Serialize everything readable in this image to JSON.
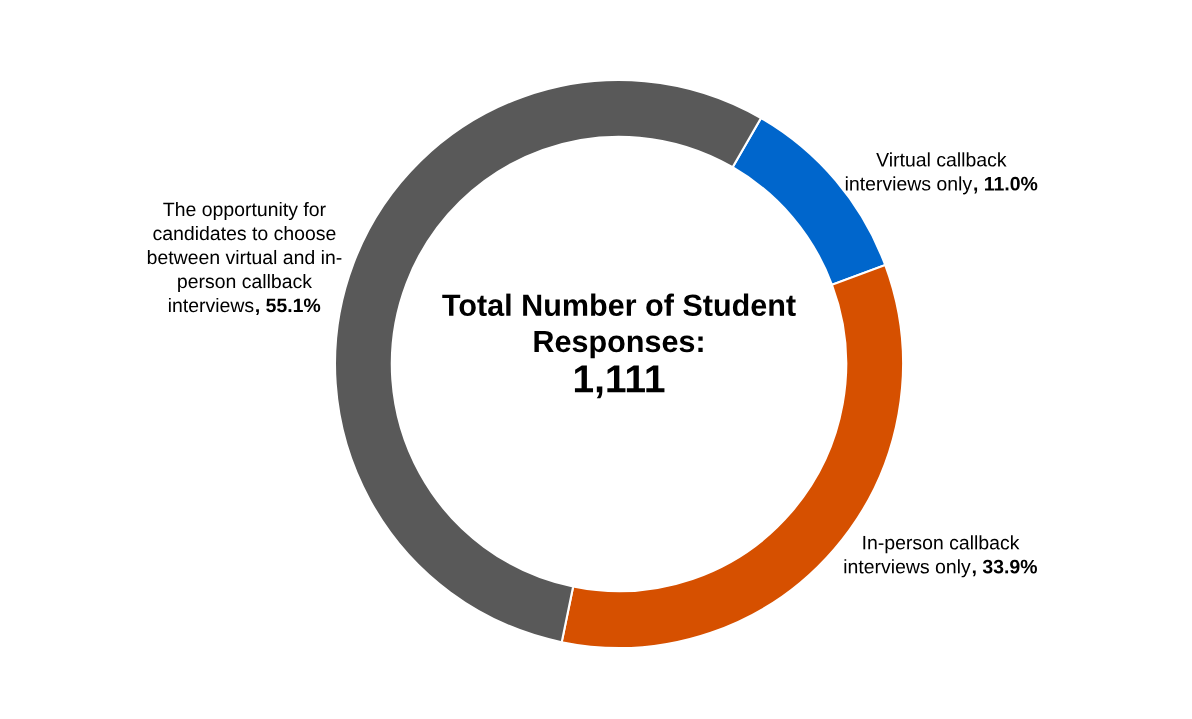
{
  "chart_data": {
    "type": "donut",
    "title": "Total Number of Student Responses:",
    "subtitle": "1,111",
    "categories": [
      "Virtual callback interviews only",
      "In-person callback interviews only",
      "The opportunity for candidates to choose between virtual and in-person callback interviews"
    ],
    "values": [
      11.0,
      33.9,
      55.1
    ],
    "colors": [
      "#0066cc",
      "#d65000",
      "#595959"
    ],
    "value_labels": [
      ", 11.0%",
      ", 33.9%",
      ", 55.1%"
    ],
    "legend": false
  }
}
